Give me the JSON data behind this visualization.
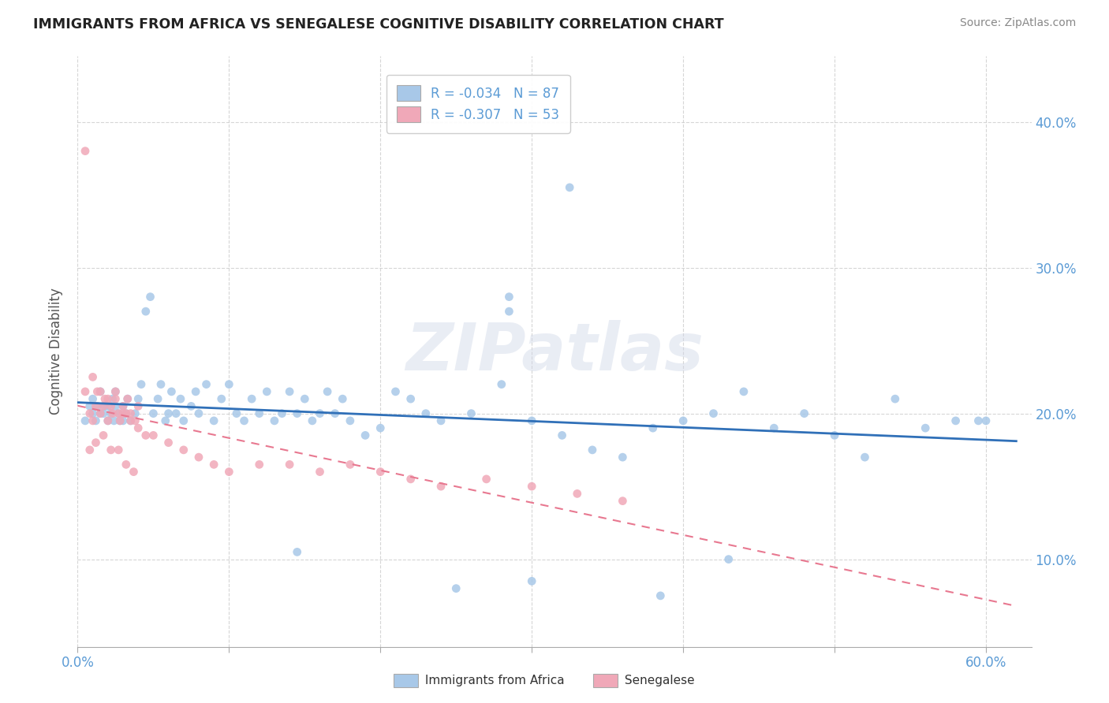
{
  "title": "IMMIGRANTS FROM AFRICA VS SENEGALESE COGNITIVE DISABILITY CORRELATION CHART",
  "source": "Source: ZipAtlas.com",
  "ylabel": "Cognitive Disability",
  "ytick_vals": [
    0.1,
    0.2,
    0.3,
    0.4
  ],
  "ytick_labels": [
    "10.0%",
    "20.0%",
    "30.0%",
    "40.0%"
  ],
  "xlim": [
    0.0,
    0.63
  ],
  "ylim": [
    0.04,
    0.445
  ],
  "watermark": "ZIPatlas",
  "legend_r_africa": "-0.034",
  "legend_n_africa": "87",
  "legend_r_senegalese": "-0.307",
  "legend_n_senegalese": "53",
  "color_africa": "#a8c8e8",
  "color_senegalese": "#f0a8b8",
  "trendline_africa_color": "#3070b8",
  "trendline_senegalese_color": "#e87890",
  "label_color": "#5b9bd5",
  "africa_x": [
    0.005,
    0.008,
    0.01,
    0.01,
    0.012,
    0.013,
    0.015,
    0.015,
    0.017,
    0.018,
    0.02,
    0.02,
    0.022,
    0.023,
    0.024,
    0.025,
    0.025,
    0.027,
    0.028,
    0.03,
    0.03,
    0.032,
    0.033,
    0.035,
    0.038,
    0.04,
    0.042,
    0.045,
    0.048,
    0.05,
    0.053,
    0.055,
    0.058,
    0.06,
    0.062,
    0.065,
    0.068,
    0.07,
    0.075,
    0.078,
    0.08,
    0.085,
    0.09,
    0.095,
    0.1,
    0.105,
    0.11,
    0.115,
    0.12,
    0.125,
    0.13,
    0.135,
    0.14,
    0.145,
    0.15,
    0.155,
    0.16,
    0.165,
    0.17,
    0.175,
    0.18,
    0.19,
    0.2,
    0.21,
    0.22,
    0.23,
    0.24,
    0.26,
    0.28,
    0.3,
    0.32,
    0.34,
    0.36,
    0.38,
    0.4,
    0.42,
    0.44,
    0.46,
    0.48,
    0.5,
    0.52,
    0.54,
    0.56,
    0.58,
    0.6,
    0.43,
    0.385
  ],
  "africa_y": [
    0.195,
    0.205,
    0.2,
    0.21,
    0.195,
    0.205,
    0.2,
    0.215,
    0.2,
    0.205,
    0.195,
    0.205,
    0.2,
    0.21,
    0.195,
    0.205,
    0.215,
    0.2,
    0.195,
    0.205,
    0.195,
    0.2,
    0.21,
    0.195,
    0.2,
    0.21,
    0.22,
    0.27,
    0.28,
    0.2,
    0.21,
    0.22,
    0.195,
    0.2,
    0.215,
    0.2,
    0.21,
    0.195,
    0.205,
    0.215,
    0.2,
    0.22,
    0.195,
    0.21,
    0.22,
    0.2,
    0.195,
    0.21,
    0.2,
    0.215,
    0.195,
    0.2,
    0.215,
    0.2,
    0.21,
    0.195,
    0.2,
    0.215,
    0.2,
    0.21,
    0.195,
    0.185,
    0.19,
    0.215,
    0.21,
    0.2,
    0.195,
    0.2,
    0.22,
    0.195,
    0.185,
    0.175,
    0.17,
    0.19,
    0.195,
    0.2,
    0.215,
    0.19,
    0.2,
    0.185,
    0.17,
    0.21,
    0.19,
    0.195,
    0.195,
    0.1,
    0.075
  ],
  "africa_x_outliers": [
    0.285,
    0.285,
    0.325,
    0.145,
    0.3,
    0.25,
    0.595
  ],
  "africa_y_outliers": [
    0.27,
    0.28,
    0.355,
    0.105,
    0.085,
    0.08,
    0.195
  ],
  "senegalese_x": [
    0.005,
    0.008,
    0.01,
    0.012,
    0.013,
    0.015,
    0.017,
    0.018,
    0.02,
    0.022,
    0.023,
    0.025,
    0.027,
    0.028,
    0.03,
    0.032,
    0.033,
    0.035,
    0.038,
    0.04,
    0.01,
    0.015,
    0.02,
    0.025,
    0.03,
    0.035,
    0.04,
    0.045,
    0.05,
    0.06,
    0.07,
    0.08,
    0.09,
    0.1,
    0.12,
    0.14,
    0.16,
    0.18,
    0.2,
    0.22,
    0.24,
    0.27,
    0.3,
    0.33,
    0.36,
    0.008,
    0.012,
    0.017,
    0.022,
    0.027,
    0.032,
    0.037,
    0.005
  ],
  "senegalese_y": [
    0.215,
    0.2,
    0.195,
    0.205,
    0.215,
    0.2,
    0.205,
    0.21,
    0.195,
    0.205,
    0.2,
    0.21,
    0.2,
    0.195,
    0.205,
    0.2,
    0.21,
    0.2,
    0.195,
    0.205,
    0.225,
    0.215,
    0.21,
    0.215,
    0.2,
    0.195,
    0.19,
    0.185,
    0.185,
    0.18,
    0.175,
    0.17,
    0.165,
    0.16,
    0.165,
    0.165,
    0.16,
    0.165,
    0.16,
    0.155,
    0.15,
    0.155,
    0.15,
    0.145,
    0.14,
    0.175,
    0.18,
    0.185,
    0.175,
    0.175,
    0.165,
    0.16,
    0.38
  ]
}
